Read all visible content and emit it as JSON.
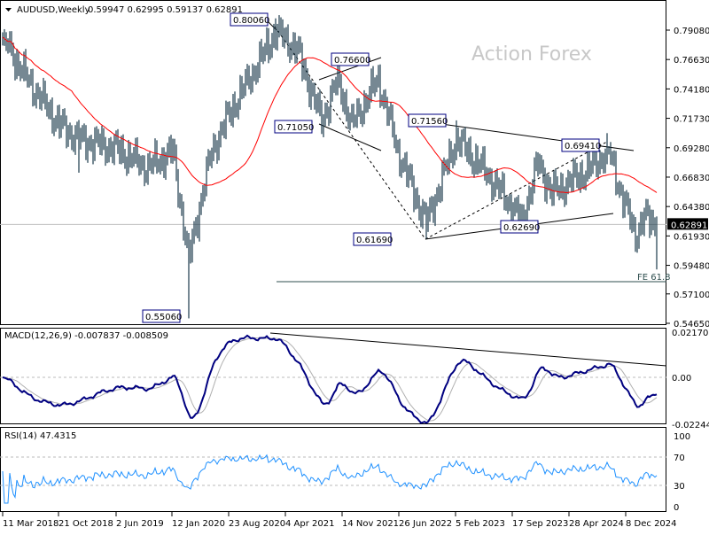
{
  "header": {
    "symbol_timeframe": "AUDUSD,Weekly",
    "ohlc": "0.59947 0.62995 0.59137 0.62891"
  },
  "watermark": "Action Forex",
  "colors": {
    "bars": "#1b3a4b",
    "ma": "#ff0000",
    "macd": "#000080",
    "signal": "#b0b0b0",
    "rsi": "#1e90ff",
    "trend": "#000000",
    "fe_line": "#2f4f4f"
  },
  "chart_data": [
    {
      "type": "ohlc",
      "title": "AUDUSD,Weekly",
      "y_ticks": [
        "0.79080",
        "0.76630",
        "0.74180",
        "0.71730",
        "0.69280",
        "0.66830",
        "0.64380",
        "0.61930",
        "0.59480",
        "0.57100",
        "0.54650"
      ],
      "ylim": [
        0.5465,
        0.7908
      ],
      "last_price": "0.62891",
      "close_path": [
        [
          "2018-03-11",
          0.785
        ],
        [
          "2018-06-10",
          0.752
        ],
        [
          "2018-10-21",
          0.712
        ],
        [
          "2019-01-06",
          0.7
        ],
        [
          "2019-06-02",
          0.692
        ],
        [
          "2019-10-06",
          0.676
        ],
        [
          "2020-01-12",
          0.69
        ],
        [
          "2020-03-15",
          0.6
        ],
        [
          "2020-04-19",
          0.636
        ],
        [
          "2020-06-14",
          0.69
        ],
        [
          "2020-09-06",
          0.727
        ],
        [
          "2021-01-03",
          0.77
        ],
        [
          "2021-02-21",
          0.79
        ],
        [
          "2021-05-16",
          0.775
        ],
        [
          "2021-08-22",
          0.715
        ],
        [
          "2021-10-24",
          0.75
        ],
        [
          "2021-12-19",
          0.712
        ],
        [
          "2022-04-03",
          0.75
        ],
        [
          "2022-06-19",
          0.69
        ],
        [
          "2022-10-09",
          0.63
        ],
        [
          "2023-02-05",
          0.7
        ],
        [
          "2023-06-11",
          0.67
        ],
        [
          "2023-10-22",
          0.632
        ],
        [
          "2023-12-24",
          0.68
        ],
        [
          "2024-02-18",
          0.655
        ],
        [
          "2024-07-14",
          0.675
        ],
        [
          "2024-09-29",
          0.69
        ],
        [
          "2024-11-17",
          0.655
        ],
        [
          "2025-01-12",
          0.62
        ],
        [
          "2025-02-16",
          0.635
        ],
        [
          "2025-04-06",
          0.6289
        ]
      ],
      "annotations": [
        {
          "label": "0.80060"
        },
        {
          "label": "0.76600"
        },
        {
          "label": "0.71050"
        },
        {
          "label": "0.71560"
        },
        {
          "label": "0.69410"
        },
        {
          "label": "0.61690"
        },
        {
          "label": "0.62690"
        },
        {
          "label": "0.55060"
        },
        {
          "label": "FE 61.8"
        }
      ],
      "x_ticks": [
        "11 Mar 2018",
        "21 Oct 2018",
        "2 Jun 2019",
        "12 Jan 2020",
        "23 Aug 2020",
        "4 Apr 2021",
        "14 Nov 2021",
        "26 Jun 2022",
        "5 Feb 2023",
        "17 Sep 2023",
        "28 Apr 2024",
        "8 Dec 2024"
      ]
    },
    {
      "type": "line",
      "title": "MACD(12,26,9) -0.007837 -0.008509",
      "y_ticks": [
        "0.021701",
        "0.00",
        "-0.022445"
      ],
      "ylim": [
        -0.022445,
        0.021701
      ]
    },
    {
      "type": "line",
      "title": "RSI(14) 47.4315",
      "y_ticks": [
        "100",
        "70",
        "30",
        "0"
      ],
      "ylim": [
        0,
        100
      ]
    }
  ]
}
